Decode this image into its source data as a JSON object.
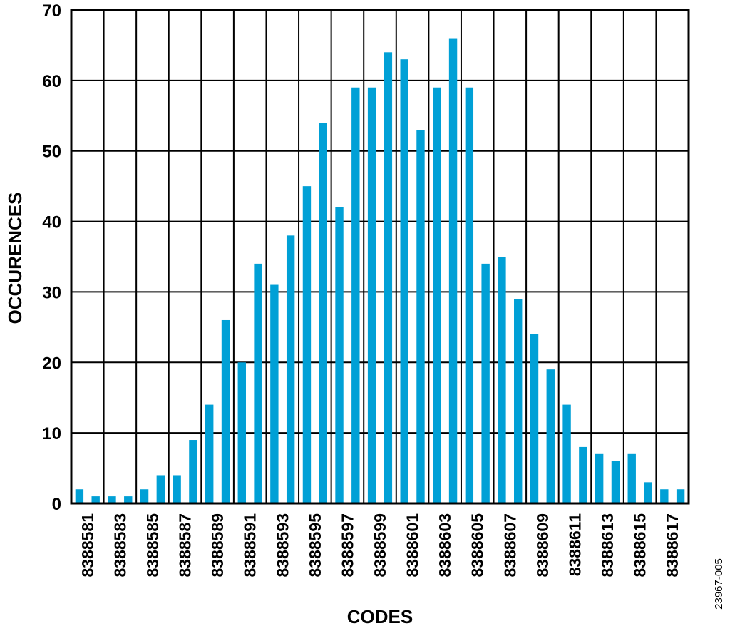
{
  "chart_data": {
    "type": "bar",
    "xlabel": "CODES",
    "ylabel": "OCCURENCES",
    "figure_id": "23967-005",
    "ylim": [
      0,
      70
    ],
    "y_ticks": [
      "0",
      "10",
      "20",
      "30",
      "40",
      "50",
      "60",
      "70"
    ],
    "x_tick_labels": [
      "8388581",
      "8388583",
      "8388585",
      "8388587",
      "8388589",
      "8388591",
      "8388593",
      "8388595",
      "8388597",
      "8388599",
      "8388601",
      "8388603",
      "8388605",
      "8388607",
      "8388609",
      "8388611",
      "8388613",
      "8388615",
      "8388617"
    ],
    "categories": [
      8388580,
      8388581,
      8388582,
      8388583,
      8388584,
      8388585,
      8388586,
      8388587,
      8388588,
      8388589,
      8388590,
      8388591,
      8388592,
      8388593,
      8388594,
      8388595,
      8388596,
      8388597,
      8388598,
      8388599,
      8388600,
      8388601,
      8388602,
      8388603,
      8388604,
      8388605,
      8388606,
      8388607,
      8388608,
      8388609,
      8388610,
      8388611,
      8388612,
      8388613,
      8388614,
      8388615,
      8388616,
      8388617
    ],
    "values": [
      2,
      1,
      1,
      1,
      2,
      4,
      4,
      9,
      14,
      26,
      20,
      34,
      31,
      38,
      45,
      54,
      42,
      59,
      59,
      64,
      63,
      53,
      59,
      66,
      59,
      34,
      35,
      29,
      24,
      19,
      14,
      8,
      7,
      6,
      7,
      3,
      2,
      2
    ],
    "grid": true,
    "bar_color": "#00a0d6"
  }
}
